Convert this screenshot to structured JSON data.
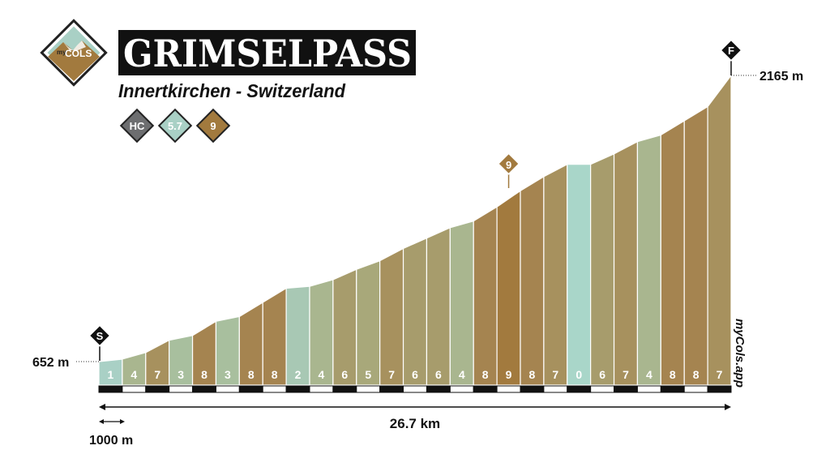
{
  "header": {
    "logo_text_small": "my",
    "logo_text_big": "COLS",
    "title": "GRIMSELPASS",
    "subtitle": "Innertkirchen - Switzerland",
    "badges": [
      {
        "label": "HC",
        "color": "#6d6e70"
      },
      {
        "label": "5.7",
        "color": "#a9d0c5"
      },
      {
        "label": "9",
        "color": "#a27a3e"
      }
    ]
  },
  "markers": {
    "start": "S",
    "finish": "F",
    "max_gradient_label": "9"
  },
  "watermark": "myCols.app",
  "chart_data": {
    "type": "area",
    "title": "",
    "xlabel": "",
    "ylabel": "",
    "total_distance_label": "26.7 km",
    "scale_label": "1000 m",
    "start_elevation_label": "652 m",
    "finish_elevation_label": "2165 m",
    "total_distance_km": 26.7,
    "start_elevation_m": 652,
    "finish_elevation_m": 2165,
    "max_gradient_segment_index": 17,
    "segments": [
      {
        "gradient": 1,
        "end_elevation_m": 665
      },
      {
        "gradient": 4,
        "end_elevation_m": 700
      },
      {
        "gradient": 7,
        "end_elevation_m": 765
      },
      {
        "gradient": 3,
        "end_elevation_m": 790
      },
      {
        "gradient": 8,
        "end_elevation_m": 865
      },
      {
        "gradient": 3,
        "end_elevation_m": 890
      },
      {
        "gradient": 8,
        "end_elevation_m": 965
      },
      {
        "gradient": 8,
        "end_elevation_m": 1040
      },
      {
        "gradient": 2,
        "end_elevation_m": 1050
      },
      {
        "gradient": 4,
        "end_elevation_m": 1085
      },
      {
        "gradient": 6,
        "end_elevation_m": 1140
      },
      {
        "gradient": 5,
        "end_elevation_m": 1185
      },
      {
        "gradient": 7,
        "end_elevation_m": 1250
      },
      {
        "gradient": 6,
        "end_elevation_m": 1305
      },
      {
        "gradient": 6,
        "end_elevation_m": 1360
      },
      {
        "gradient": 4,
        "end_elevation_m": 1395
      },
      {
        "gradient": 8,
        "end_elevation_m": 1470
      },
      {
        "gradient": 9,
        "end_elevation_m": 1555
      },
      {
        "gradient": 8,
        "end_elevation_m": 1630
      },
      {
        "gradient": 7,
        "end_elevation_m": 1695
      },
      {
        "gradient": 0,
        "end_elevation_m": 1695
      },
      {
        "gradient": 6,
        "end_elevation_m": 1750
      },
      {
        "gradient": 7,
        "end_elevation_m": 1815
      },
      {
        "gradient": 4,
        "end_elevation_m": 1850
      },
      {
        "gradient": 8,
        "end_elevation_m": 1925
      },
      {
        "gradient": 8,
        "end_elevation_m": 2000
      },
      {
        "gradient": 7,
        "end_elevation_m": 2165
      }
    ],
    "gradient_colors": {
      "0": "#a9d6c9",
      "1": "#a9d0c5",
      "2": "#a8c8b4",
      "3": "#a8bf9e",
      "4": "#a9b68f",
      "5": "#a8a87a",
      "6": "#a79c6c",
      "7": "#a7915e",
      "8": "#a58450",
      "9": "#a27a3e"
    }
  }
}
